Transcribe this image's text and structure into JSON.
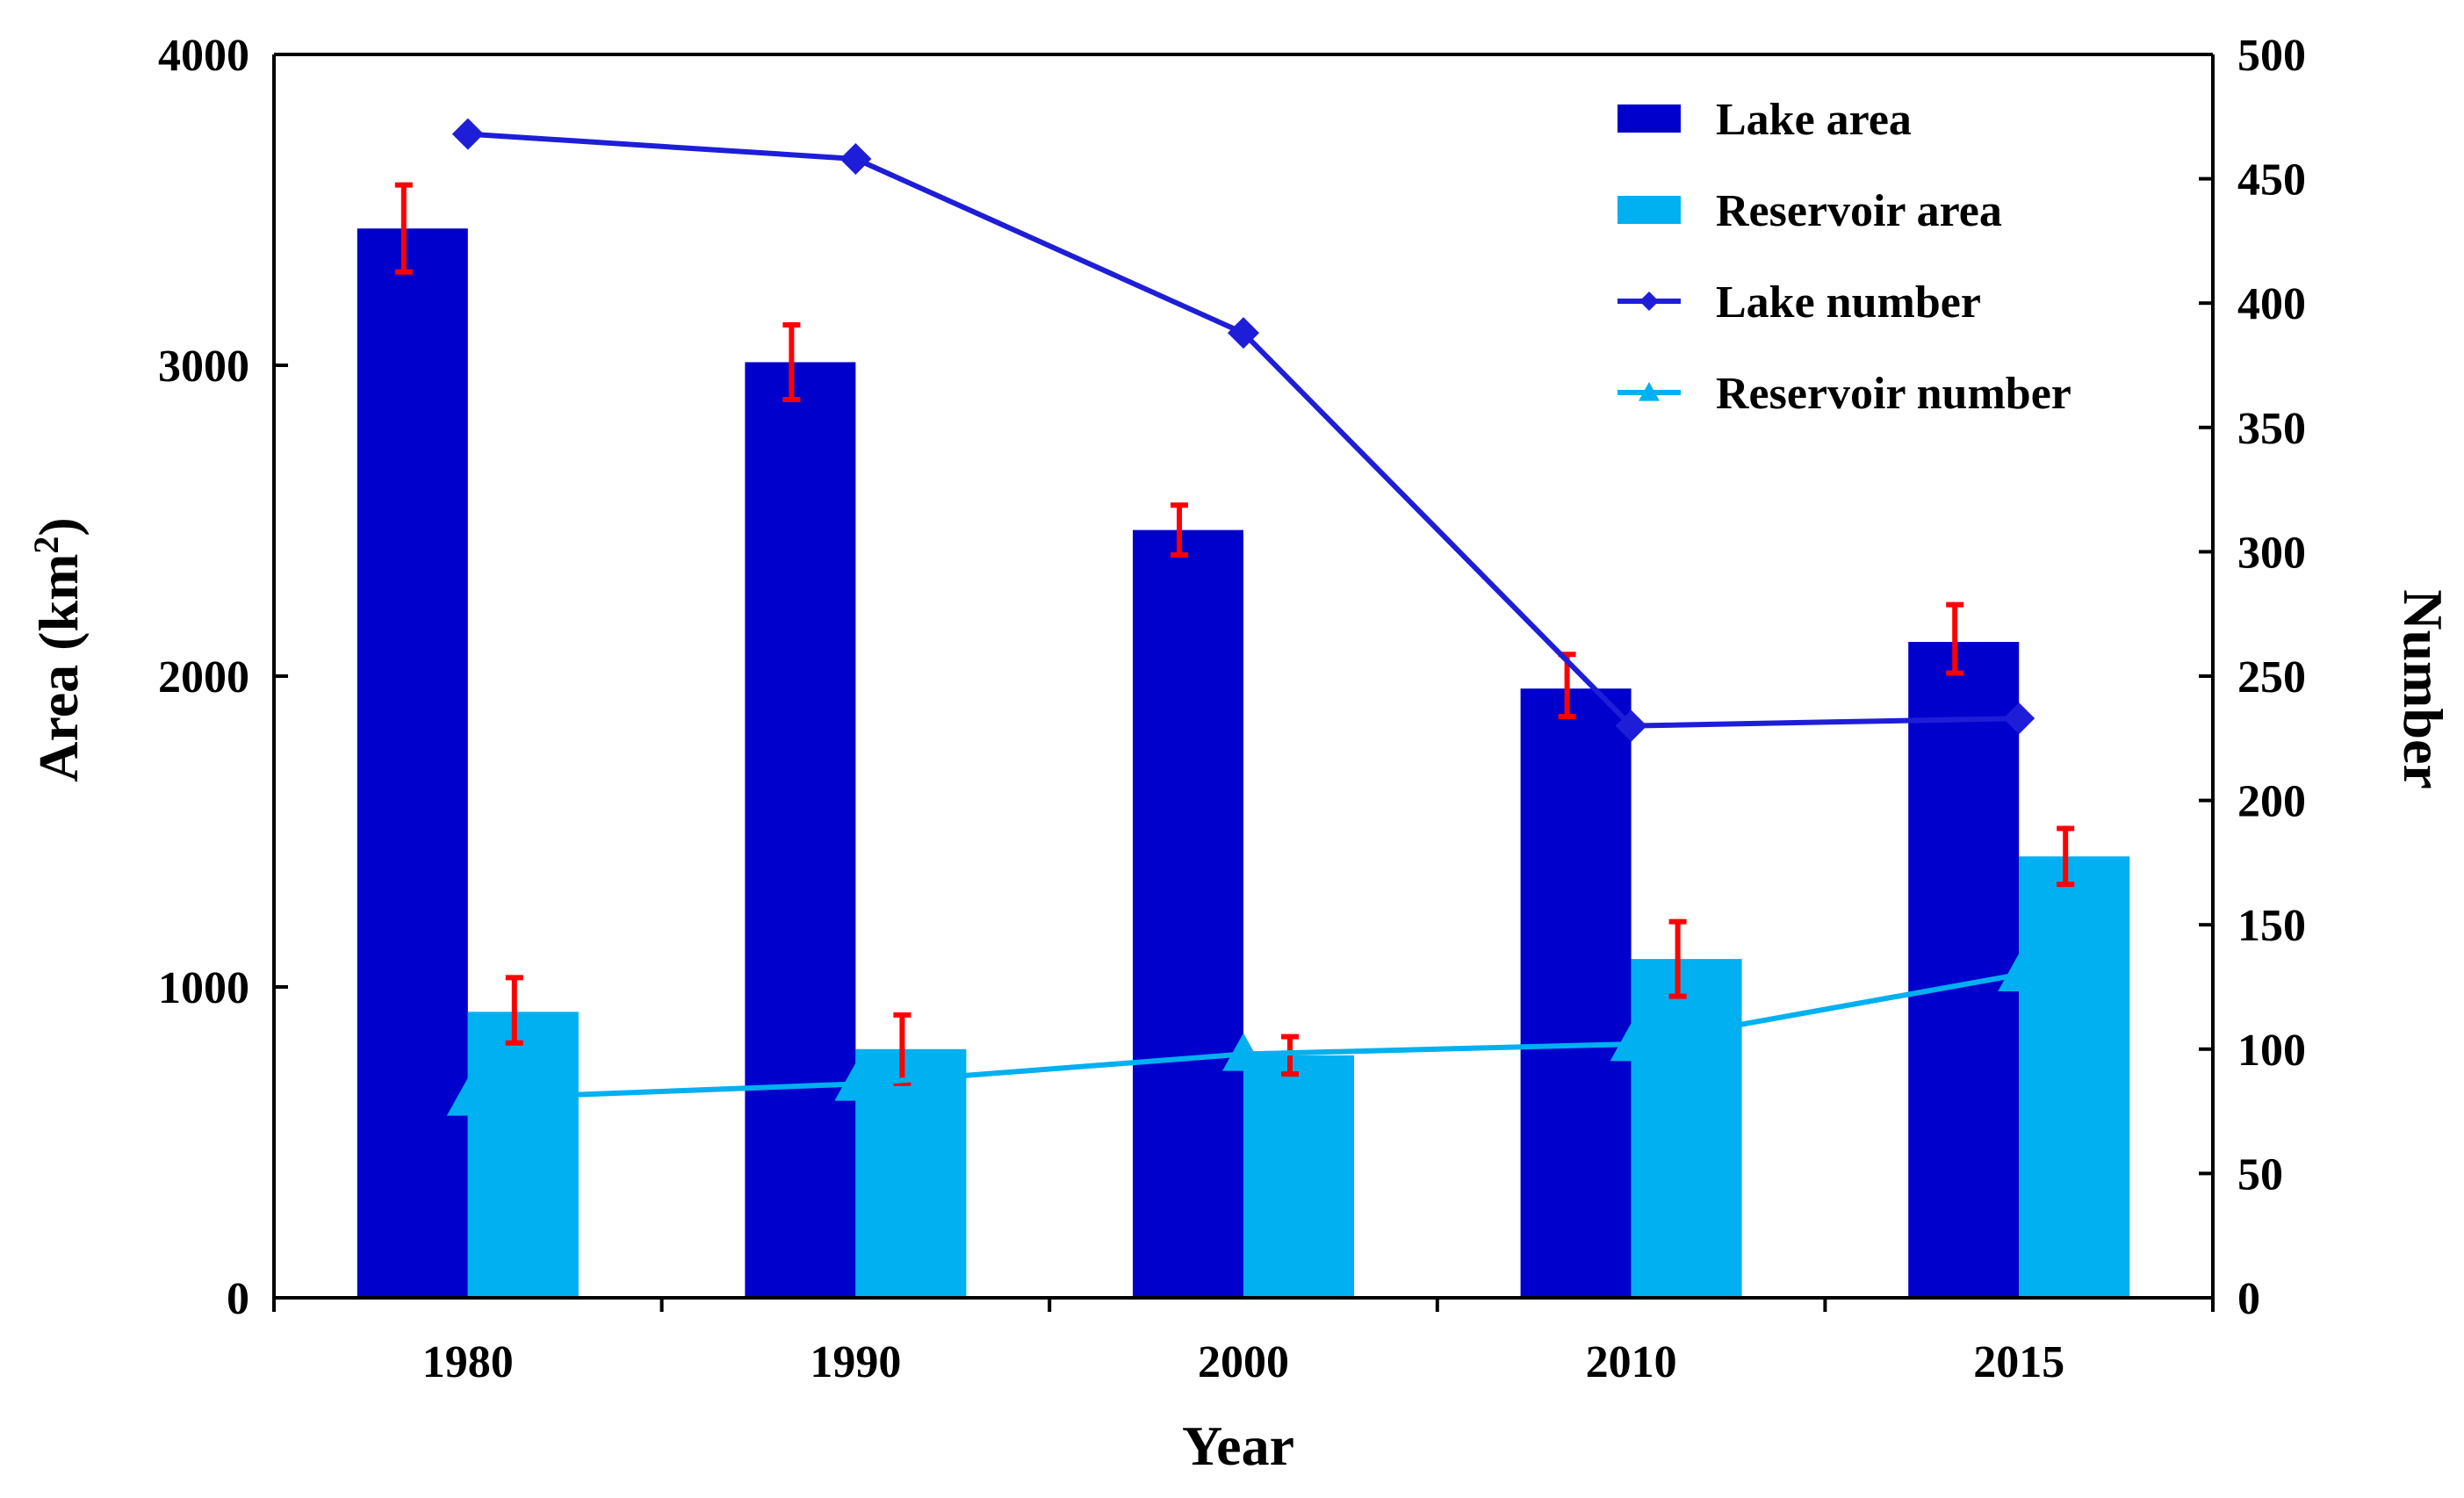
{
  "chart_data": {
    "type": "bar",
    "categories": [
      "1980",
      "1990",
      "2000",
      "2010",
      "2015"
    ],
    "xlabel": "Year",
    "ylabel_left": {
      "base": "Area (km",
      "sup": "2",
      "end": ")"
    },
    "ylabel_right": "Number",
    "ylim_left": [
      0,
      4000
    ],
    "yticks_left": [
      "0",
      "1000",
      "2000",
      "3000",
      "4000"
    ],
    "ylim_right": [
      0,
      500
    ],
    "yticks_right": [
      "0",
      "50",
      "100",
      "150",
      "200",
      "250",
      "300",
      "350",
      "400",
      "450",
      "500"
    ],
    "legend_position": "top-right",
    "grid": false,
    "bar_series": [
      {
        "name": "Lake area",
        "color": "#0000CC",
        "values": [
          3440,
          3010,
          2470,
          1960,
          2110
        ],
        "error_low": [
          3300,
          2890,
          2390,
          1870,
          2010
        ],
        "error_high": [
          3580,
          3130,
          2550,
          2070,
          2230
        ]
      },
      {
        "name": "Reservoir area",
        "color": "#00B0F0",
        "values": [
          920,
          800,
          780,
          1090,
          1420
        ],
        "error_low": [
          820,
          690,
          720,
          970,
          1330
        ],
        "error_high": [
          1030,
          910,
          840,
          1210,
          1510
        ]
      }
    ],
    "line_series": [
      {
        "name": "Lake number",
        "color": "#1E1ED8",
        "marker": "diamond",
        "values": [
          468,
          458,
          388,
          230,
          233
        ]
      },
      {
        "name": "Reservoir number",
        "color": "#00B0F0",
        "marker": "triangle",
        "values": [
          80,
          86,
          98,
          102,
          130
        ]
      }
    ],
    "error_color": "#FF0000"
  }
}
